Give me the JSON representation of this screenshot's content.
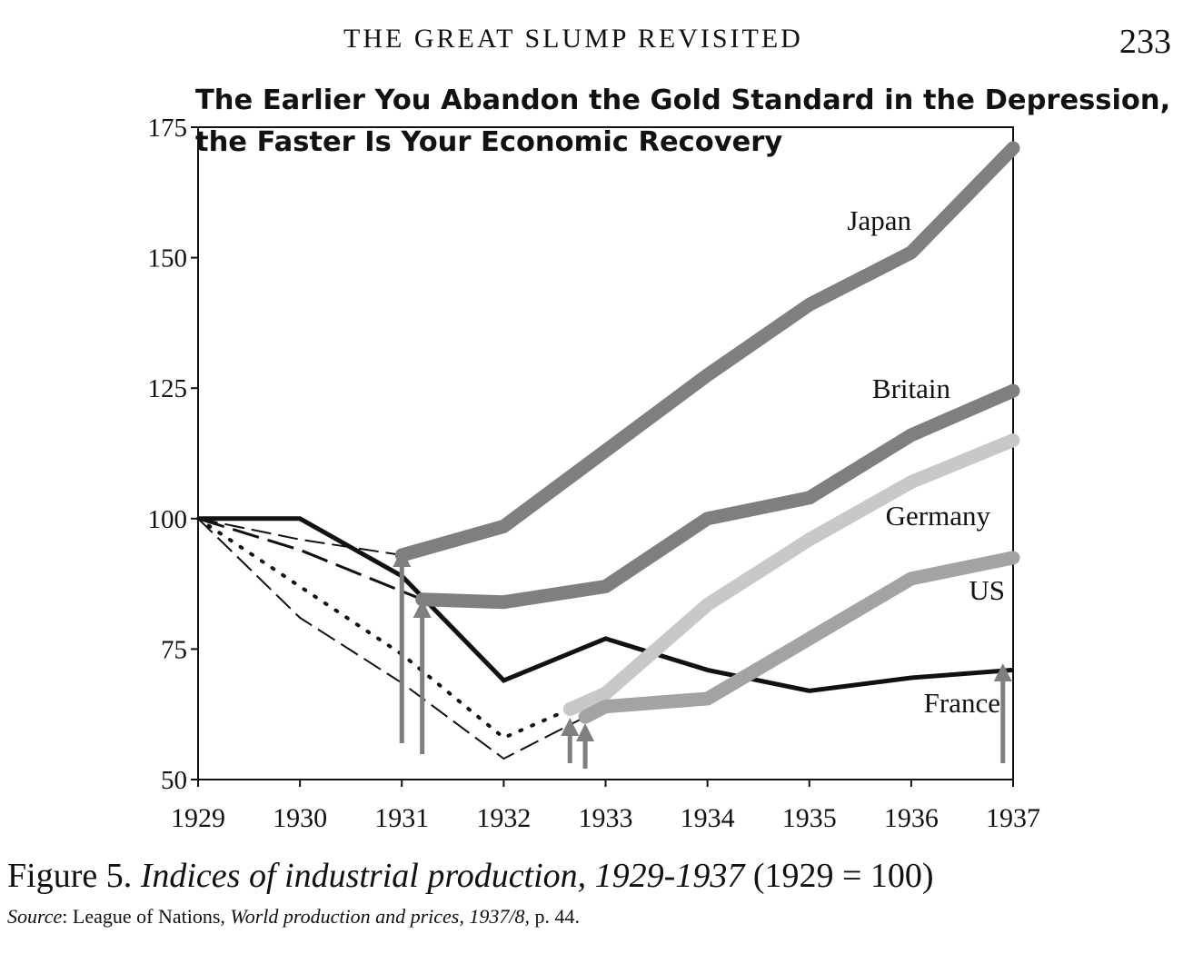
{
  "page": {
    "running_head": "THE GREAT SLUMP REVISITED",
    "page_number": "233"
  },
  "caption": {
    "figure_label": "Figure 5.",
    "figure_title": "Indices of industrial production, 1929-1937",
    "figure_note": "(1929 = 100)",
    "source_label": "Source",
    "source_sep": ": League of Nations, ",
    "source_title": "World production and prices, 1937/8",
    "source_page": ", p. 44."
  },
  "chart_data": {
    "type": "line",
    "title_line1": "The Earlier You Abandon the Gold Standard in the Depression,",
    "title_line2": "the Faster Is Your Economic Recovery",
    "xlabel": "",
    "ylabel": "",
    "ylim": [
      50,
      175
    ],
    "xlim": [
      1929,
      1937
    ],
    "x_ticks": [
      "1929",
      "1930",
      "1931",
      "1932",
      "1933",
      "1934",
      "1935",
      "1936",
      "1937"
    ],
    "y_ticks": [
      "50",
      "75",
      "100",
      "125",
      "150",
      "175"
    ],
    "colors": {
      "axis": "#111111",
      "thick": "#7f7f7f",
      "light": "#c8c8c8",
      "us": "#a3a3a3",
      "france": "#111111"
    },
    "series": [
      {
        "name": "France",
        "label": "France",
        "style": "solid-black",
        "x": [
          1929,
          1930,
          1931,
          1932,
          1933,
          1934,
          1935,
          1936,
          1937
        ],
        "values": [
          100,
          100,
          89,
          69,
          77,
          71,
          67,
          69.5,
          71
        ]
      },
      {
        "name": "Japan-gold",
        "label": "",
        "style": "thin-dash",
        "x": [
          1929,
          1930,
          1931
        ],
        "values": [
          100,
          96,
          93
        ]
      },
      {
        "name": "Japan",
        "label": "Japan",
        "style": "thick-grey",
        "x": [
          1931,
          1932,
          1933,
          1934,
          1935,
          1936,
          1937
        ],
        "values": [
          93,
          98.5,
          113,
          127.5,
          141,
          151,
          171
        ]
      },
      {
        "name": "Britain-gold",
        "label": "",
        "style": "long-dash",
        "x": [
          1929,
          1930,
          1931.2
        ],
        "values": [
          100,
          94,
          84.5
        ]
      },
      {
        "name": "Britain",
        "label": "Britain",
        "style": "thick-grey",
        "x": [
          1931.2,
          1932,
          1933,
          1934,
          1935,
          1936,
          1937
        ],
        "values": [
          84.5,
          84,
          87,
          100,
          104,
          116,
          124.5
        ]
      },
      {
        "name": "Germany-gold",
        "label": "",
        "style": "dotted",
        "x": [
          1929,
          1930,
          1931,
          1932,
          1932.65
        ],
        "values": [
          100,
          87,
          74,
          58,
          63.5
        ]
      },
      {
        "name": "Germany",
        "label": "Germany",
        "style": "thick-light",
        "x": [
          1932.65,
          1933,
          1934,
          1935,
          1936,
          1937
        ],
        "values": [
          63.5,
          66.5,
          83.5,
          96,
          107,
          115
        ]
      },
      {
        "name": "US-gold",
        "label": "",
        "style": "thin-dash",
        "x": [
          1929,
          1930,
          1931,
          1932,
          1932.8
        ],
        "values": [
          100,
          81,
          68.5,
          54,
          62
        ]
      },
      {
        "name": "US",
        "label": "US",
        "style": "thick-us",
        "x": [
          1932.8,
          1933,
          1934,
          1935,
          1936,
          1937
        ],
        "values": [
          62,
          64,
          65.5,
          77,
          88.5,
          92.5
        ]
      }
    ],
    "gold_exit_arrows": [
      {
        "country": "Japan",
        "x": 1931
      },
      {
        "country": "Britain",
        "x": 1931.2
      },
      {
        "country": "Germany",
        "x": 1932.65
      },
      {
        "country": "US",
        "x": 1932.8
      },
      {
        "country": "France",
        "x": 1936.9
      }
    ]
  }
}
